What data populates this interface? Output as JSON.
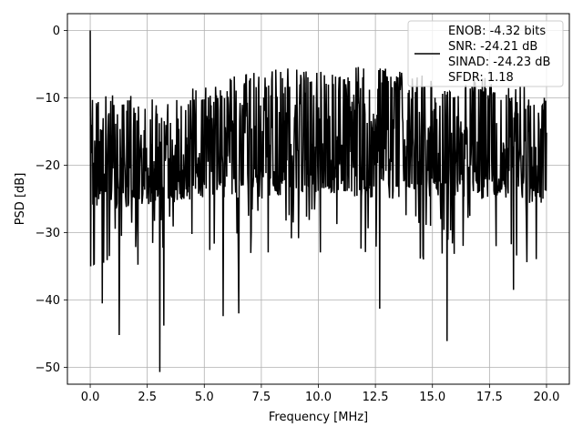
{
  "chart_data": {
    "type": "line",
    "xlabel": "Frequency [MHz]",
    "ylabel": "PSD [dB]",
    "xlim": [
      -1.0,
      21.0
    ],
    "ylim": [
      -52.5,
      2.5
    ],
    "xticks": [
      0.0,
      2.5,
      5.0,
      7.5,
      10.0,
      12.5,
      15.0,
      17.5,
      20.0
    ],
    "xtick_labels": [
      "0.0",
      "2.5",
      "5.0",
      "7.5",
      "10.0",
      "12.5",
      "15.0",
      "17.5",
      "20.0"
    ],
    "yticks": [
      0,
      -10,
      -20,
      -30,
      -40,
      -50
    ],
    "ytick_labels": [
      "0",
      "−10",
      "−20",
      "−30",
      "−40",
      "−50"
    ],
    "grid": true,
    "legend_placement": "top-right",
    "series": [
      {
        "label_lines": [
          "ENOB: -4.32 bits",
          "SNR: -24.21 dB",
          "SINAD: -24.23 dB",
          "SFDR: 1.18"
        ],
        "color": "#000000",
        "x_range": [
          0.0,
          20.0
        ],
        "points": 1024,
        "peak": {
          "x": 0.0,
          "y": 0.0
        },
        "notable_minima": [
          {
            "x": 0.52,
            "y": -40.5
          },
          {
            "x": 1.28,
            "y": -45.2
          },
          {
            "x": 3.05,
            "y": -50.7
          },
          {
            "x": 3.22,
            "y": -43.8
          },
          {
            "x": 5.82,
            "y": -42.4
          },
          {
            "x": 6.52,
            "y": -42.0
          },
          {
            "x": 12.68,
            "y": -41.3
          },
          {
            "x": 15.65,
            "y": -46.1
          },
          {
            "x": 18.55,
            "y": -38.5
          }
        ],
        "envelope": [
          {
            "x": 0.0,
            "upper": -8.0,
            "lower": -26.0,
            "mid": -19.0
          },
          {
            "x": 2.5,
            "upper": -10.0,
            "lower": -26.0,
            "mid": -18.5
          },
          {
            "x": 5.0,
            "upper": -8.0,
            "lower": -25.0,
            "mid": -17.5
          },
          {
            "x": 7.5,
            "upper": -5.0,
            "lower": -24.0,
            "mid": -16.5
          },
          {
            "x": 10.0,
            "upper": -6.0,
            "lower": -24.0,
            "mid": -16.0
          },
          {
            "x": 12.5,
            "upper": -5.0,
            "lower": -25.0,
            "mid": -16.0
          },
          {
            "x": 15.0,
            "upper": -7.0,
            "lower": -25.0,
            "mid": -16.5
          },
          {
            "x": 17.5,
            "upper": -7.0,
            "lower": -25.0,
            "mid": -17.0
          },
          {
            "x": 20.0,
            "upper": -9.0,
            "lower": -26.0,
            "mid": -18.5
          }
        ]
      }
    ]
  }
}
